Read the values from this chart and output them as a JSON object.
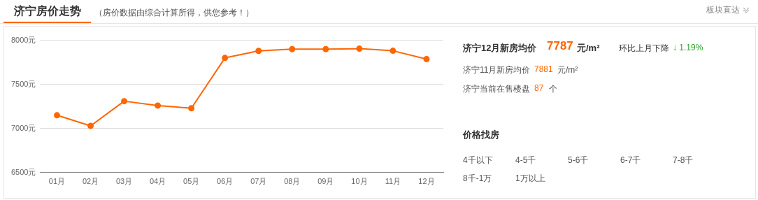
{
  "chart_data": [
    {
      "type": "line",
      "title": "济宁房价走势",
      "subtitle": "（房价数据由综合计算所得，供您参考！）",
      "categories": [
        "01月",
        "02月",
        "03月",
        "04月",
        "05月",
        "06月",
        "07月",
        "08月",
        "09月",
        "10月",
        "11月",
        "12月"
      ],
      "series": [
        {
          "color": "#ff6600",
          "values": [
            7150,
            7030,
            7310,
            7260,
            7230,
            7800,
            7880,
            7900,
            7900,
            7905,
            7881,
            7787
          ]
        }
      ],
      "ylim": [
        6500,
        8000
      ],
      "yticks": [
        {
          "value": 6500,
          "label": "6500元"
        },
        {
          "value": 7000,
          "label": "7000元"
        },
        {
          "value": 7500,
          "label": "7500元"
        },
        {
          "value": 8000,
          "label": "8000元"
        }
      ],
      "grid": "y",
      "legend": false,
      "marker": "circle",
      "line_style": "solid"
    },
    {
      "type": "other",
      "annotations": [
        "板块直达",
        "济宁12月新房均价",
        "7787",
        "元/m²",
        "环比上月下降",
        "↓ 1.19%",
        "济宁11月新房均价",
        "7881",
        "元/m²",
        "济宁当前在售楼盘",
        "87",
        "个",
        "价格找房",
        "4千以下",
        "4-5千",
        "5-6千",
        "6-7千",
        "7-8千",
        "8千-1万",
        "1万以上"
      ]
    }
  ]
}
